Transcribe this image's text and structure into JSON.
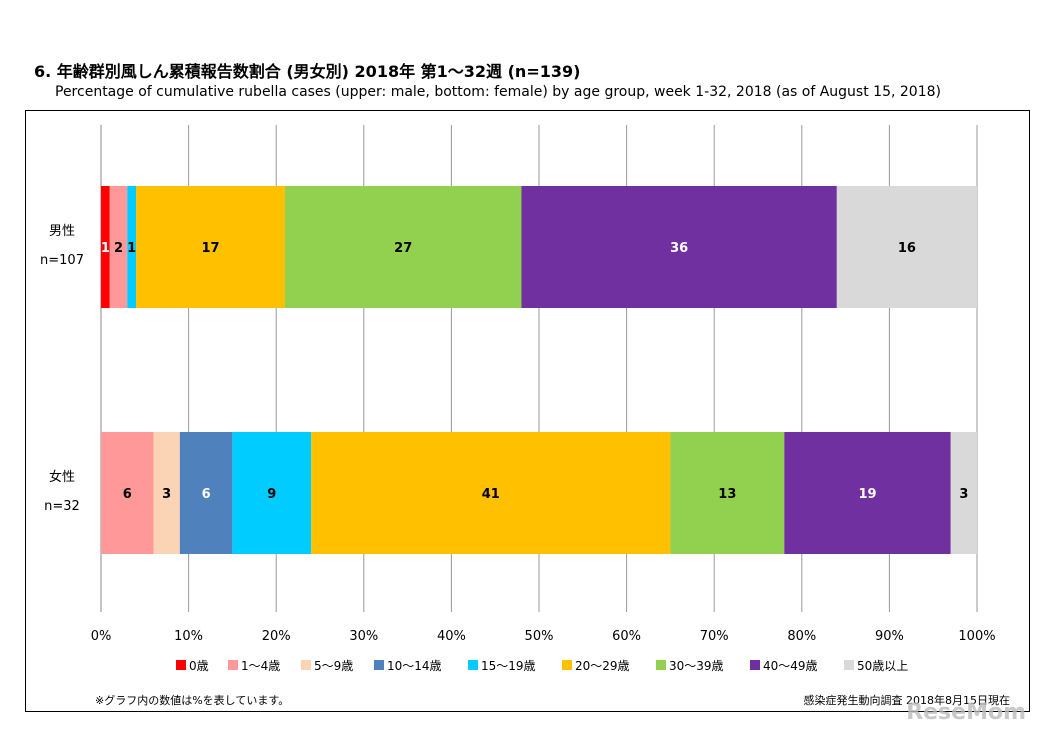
{
  "title": "6. 年齢群別風しん累積報告数割合 (男女別) 2018年 第1～32週 (n=139)",
  "subtitle": "Percentage of cumulative rubella cases (upper: male, bottom: female) by age group, week 1-32, 2018 (as of August 15, 2018)",
  "note": "※グラフ内の数値は%を表しています。",
  "source": "感染症発生動向調査 2018年8月15日現在",
  "watermark": "ReseMom",
  "chart_data": {
    "type": "bar",
    "orientation": "horizontal",
    "stacked": true,
    "categories": [
      {
        "label": "男性",
        "n": "n=107"
      },
      {
        "label": "女性",
        "n": "n=32"
      }
    ],
    "series": [
      {
        "name": "0歳",
        "color": "#ff0000",
        "values": [
          1,
          0
        ],
        "label_color": "#ffffff"
      },
      {
        "name": "1～4歳",
        "color": "#ff9999",
        "values": [
          2,
          6
        ],
        "label_color": "#000000"
      },
      {
        "name": "5～9歳",
        "color": "#fad4b4",
        "values": [
          0,
          3
        ],
        "label_color": "#000000"
      },
      {
        "name": "10～14歳",
        "color": "#4f81bd",
        "values": [
          0,
          6
        ],
        "label_color": "#ffffff"
      },
      {
        "name": "15～19歳",
        "color": "#00ccff",
        "values": [
          1,
          9
        ],
        "label_color": "#000000"
      },
      {
        "name": "20～29歳",
        "color": "#ffc000",
        "values": [
          17,
          41
        ],
        "label_color": "#000000"
      },
      {
        "name": "30～39歳",
        "color": "#92d050",
        "values": [
          27,
          13
        ],
        "label_color": "#000000"
      },
      {
        "name": "40～49歳",
        "color": "#7030a0",
        "values": [
          36,
          19
        ],
        "label_color": "#ffffff"
      },
      {
        "name": "50歳以上",
        "color": "#d9d9d9",
        "values": [
          16,
          3
        ],
        "label_color": "#000000"
      }
    ],
    "xlim": [
      0,
      100
    ],
    "xticks": [
      "0%",
      "10%",
      "20%",
      "30%",
      "40%",
      "50%",
      "60%",
      "70%",
      "80%",
      "90%",
      "100%"
    ],
    "grid": true,
    "legend": "bottom"
  }
}
